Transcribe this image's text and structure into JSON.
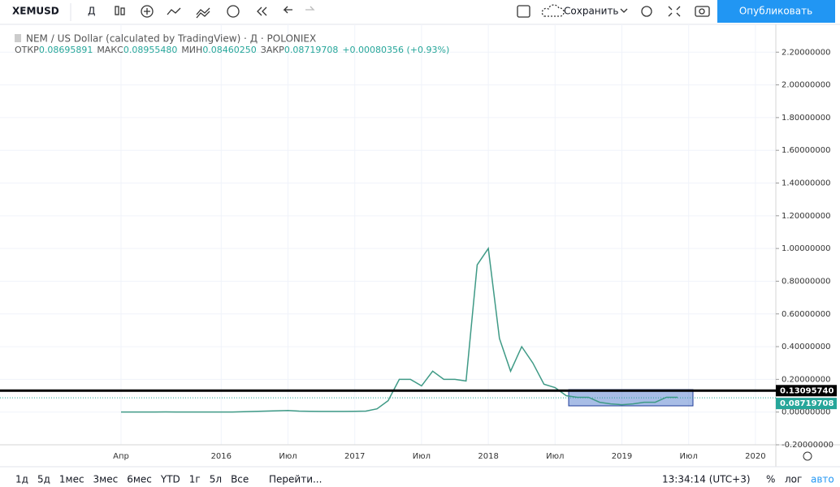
{
  "toolbar": {
    "symbol": "XEMUSD",
    "interval": "Д",
    "save": "Сохранить",
    "publish": "Опубликовать"
  },
  "legend": {
    "title": "NEM / US Dollar (calculated by TradingView) · Д · POLONIEX",
    "open_label": "ОТКР",
    "open": "0.08695891",
    "high_label": "МАКС",
    "high": "0.08955480",
    "low_label": "МИН",
    "low": "0.08460250",
    "close_label": "ЗАКР",
    "close": "0.08719708",
    "change": "+0.00080356 (+0.93%)"
  },
  "chart_data": {
    "type": "line",
    "color": "#3f9a86",
    "categories": [
      "Апр",
      null,
      null,
      null,
      null,
      null,
      null,
      null,
      null,
      "2016",
      null,
      null,
      null,
      null,
      null,
      "Июл",
      null,
      null,
      null,
      null,
      null,
      "2017",
      null,
      null,
      null,
      null,
      null,
      "Июл",
      null,
      null,
      null,
      null,
      null,
      "2018",
      null,
      null,
      null,
      null,
      null,
      "Июл",
      null,
      null,
      null,
      null,
      null,
      "2019",
      null,
      null,
      null,
      null,
      null,
      "Июл",
      null,
      null,
      null,
      null,
      null,
      "2020"
    ],
    "values": [
      0.0005,
      0.0004,
      0.0004,
      0.0004,
      0.0008,
      0.0006,
      0.0004,
      0.0003,
      0.0002,
      0.0002,
      0.0003,
      0.002,
      0.004,
      0.006,
      0.008,
      0.01,
      0.006,
      0.005,
      0.004,
      0.004,
      0.004,
      0.005,
      0.006,
      0.02,
      0.07,
      0.2,
      0.2,
      0.16,
      0.25,
      0.2,
      0.2,
      0.19,
      0.9,
      1.0,
      0.45,
      0.25,
      0.4,
      0.3,
      0.17,
      0.15,
      0.1,
      0.09,
      0.09,
      0.06,
      0.05,
      0.045,
      0.05,
      0.06,
      0.06,
      0.09,
      0.09,
      null,
      null,
      null,
      null,
      null,
      null,
      null
    ],
    "ylim": [
      -0.2,
      2.37
    ],
    "yticks": [
      {
        "value": -0.2,
        "label": "-0.20000000"
      },
      {
        "value": 0,
        "label": "0.00000000"
      },
      {
        "value": 0.2,
        "label": "0.20000000"
      },
      {
        "value": 0.4,
        "label": "0.40000000"
      },
      {
        "value": 0.6,
        "label": "0.60000000"
      },
      {
        "value": 0.8,
        "label": "0.80000000"
      },
      {
        "value": 1,
        "label": "1.00000000"
      },
      {
        "value": 1.2,
        "label": "1.20000000"
      },
      {
        "value": 1.4,
        "label": "1.40000000"
      },
      {
        "value": 1.6,
        "label": "1.60000000"
      },
      {
        "value": 1.8,
        "label": "1.80000000"
      },
      {
        "value": 2,
        "label": "2.00000000"
      },
      {
        "value": 2.2,
        "label": "2.20000000"
      }
    ],
    "grid": true,
    "price_lines": [
      {
        "value": 0.1309574,
        "label": "0.13095740",
        "color": "#000000"
      },
      {
        "value": 0.08719708,
        "label": "0.08719708",
        "color": "#26a69a"
      }
    ]
  },
  "bottom_bar": {
    "ranges": [
      "1д",
      "5д",
      "1мес",
      "3мес",
      "6мес",
      "YTD",
      "1г",
      "5л",
      "Все"
    ],
    "goto": "Перейти...",
    "time": "13:34:14 (UTC+3)",
    "percent": "%",
    "log": "лог",
    "auto": "авто"
  }
}
